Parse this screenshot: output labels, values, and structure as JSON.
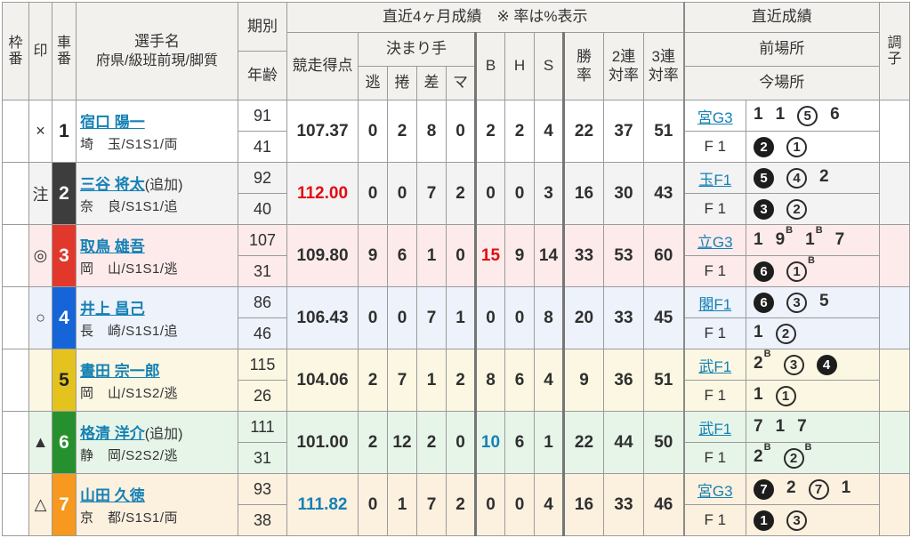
{
  "colors": {
    "link": "#1581b5",
    "red": "#e30b13",
    "blue": "#1581b5",
    "header_bg": "#f3f1ee",
    "border": "#9b9b9b"
  },
  "header": {
    "waku_l1": "枠",
    "waku_l2": "番",
    "mark": "印",
    "car_l1": "車",
    "car_l2": "番",
    "name_line1": "選手名",
    "name_line2": "府県/級班前現/脚質",
    "period": "期別",
    "age": "年齢",
    "recent4": "直近4ヶ月成績　※ 率は%表示",
    "score": "競走得点",
    "kimarite": "決まり手",
    "kimarite_cols": [
      "逃",
      "捲",
      "差",
      "マ"
    ],
    "bhs": [
      "B",
      "H",
      "S"
    ],
    "rates": [
      {
        "l1": "勝",
        "l2": "率"
      },
      {
        "l1": "2連",
        "l2": "対率"
      },
      {
        "l1": "3連",
        "l2": "対率"
      }
    ],
    "recent": "直近成績",
    "prev_place": "前場所",
    "cur_place": "今場所",
    "cond_l1": "調",
    "cond_l2": "子"
  },
  "riders": [
    {
      "mark": "×",
      "car": "1",
      "car_bg": "#ffffff",
      "car_fg": "#222222",
      "bg": "#ffffff",
      "name": "宿口 陽一",
      "name_suffix": "",
      "info": "埼　玉/S1S1/両",
      "period": "91",
      "age": "41",
      "score": "107.37",
      "score_color": "",
      "kimarite": [
        "0",
        "2",
        "8",
        "0"
      ],
      "b": "2",
      "b_color": "",
      "h": "2",
      "s": "4",
      "win": "22",
      "two": "37",
      "three": "51",
      "prev_place": "宮G3",
      "prev_place_link": true,
      "prev_results": [
        {
          "t": "1",
          "c": "p"
        },
        {
          "t": "1",
          "c": "p"
        },
        {
          "t": "5",
          "c": "w"
        },
        {
          "t": "6",
          "c": "p"
        }
      ],
      "cur_place": "F 1",
      "cur_results": [
        {
          "t": "2",
          "c": "b"
        },
        {
          "t": "1",
          "c": "w"
        }
      ]
    },
    {
      "mark": "注",
      "car": "2",
      "car_bg": "#3d3d3d",
      "car_fg": "#ffffff",
      "bg": "#f3f3f3",
      "name": "三谷 将太",
      "name_suffix": "(追加)",
      "info": "奈　良/S1S1/追",
      "period": "92",
      "age": "40",
      "score": "112.00",
      "score_color": "red",
      "kimarite": [
        "0",
        "0",
        "7",
        "2"
      ],
      "b": "0",
      "b_color": "",
      "h": "0",
      "s": "3",
      "win": "16",
      "two": "30",
      "three": "43",
      "prev_place": "玉F1",
      "prev_place_link": true,
      "prev_results": [
        {
          "t": "5",
          "c": "b"
        },
        {
          "t": "4",
          "c": "w"
        },
        {
          "t": "2",
          "c": "p"
        }
      ],
      "cur_place": "F 1",
      "cur_results": [
        {
          "t": "3",
          "c": "b"
        },
        {
          "t": "2",
          "c": "w"
        }
      ]
    },
    {
      "mark": "◎",
      "car": "3",
      "car_bg": "#e2382c",
      "car_fg": "#ffffff",
      "bg": "#fcebea",
      "name": "取鳥 雄吾",
      "name_suffix": "",
      "info": "岡　山/S1S1/逃",
      "period": "107",
      "age": "31",
      "score": "109.80",
      "score_color": "",
      "kimarite": [
        "9",
        "6",
        "1",
        "0"
      ],
      "b": "15",
      "b_color": "red",
      "h": "9",
      "s": "14",
      "win": "33",
      "two": "53",
      "three": "60",
      "prev_place": "立G3",
      "prev_place_link": true,
      "prev_results": [
        {
          "t": "1",
          "c": "p"
        },
        {
          "t": "9",
          "c": "p",
          "sup": "B"
        },
        {
          "t": "1",
          "c": "p",
          "sup": "B"
        },
        {
          "t": "7",
          "c": "p"
        }
      ],
      "cur_place": "F 1",
      "cur_results": [
        {
          "t": "6",
          "c": "b"
        },
        {
          "t": "1",
          "c": "w",
          "sup": "B"
        }
      ]
    },
    {
      "mark": "○",
      "car": "4",
      "car_bg": "#1565d8",
      "car_fg": "#ffffff",
      "bg": "#edf2fb",
      "name": "井上 昌己",
      "name_suffix": "",
      "info": "長　崎/S1S1/追",
      "period": "86",
      "age": "46",
      "score": "106.43",
      "score_color": "",
      "kimarite": [
        "0",
        "0",
        "7",
        "1"
      ],
      "b": "0",
      "b_color": "",
      "h": "0",
      "s": "8",
      "win": "20",
      "two": "33",
      "three": "45",
      "prev_place": "閣F1",
      "prev_place_link": true,
      "prev_results": [
        {
          "t": "6",
          "c": "b"
        },
        {
          "t": "3",
          "c": "w"
        },
        {
          "t": "5",
          "c": "p"
        }
      ],
      "cur_place": "F 1",
      "cur_results": [
        {
          "t": "1",
          "c": "p"
        },
        {
          "t": "2",
          "c": "w"
        }
      ]
    },
    {
      "mark": "",
      "car": "5",
      "car_bg": "#e5c31f",
      "car_fg": "#222222",
      "bg": "#fbf7e2",
      "name": "晝田 宗一郎",
      "name_suffix": "",
      "info": "岡　山/S1S2/逃",
      "period": "115",
      "age": "26",
      "score": "104.06",
      "score_color": "",
      "kimarite": [
        "2",
        "7",
        "1",
        "2"
      ],
      "b": "8",
      "b_color": "",
      "h": "6",
      "s": "4",
      "win": "9",
      "two": "36",
      "three": "51",
      "prev_place": "武F1",
      "prev_place_link": true,
      "prev_results": [
        {
          "t": "2",
          "c": "p",
          "sup": "B"
        },
        {
          "t": "3",
          "c": "w"
        },
        {
          "t": "4",
          "c": "b"
        }
      ],
      "cur_place": "F 1",
      "cur_results": [
        {
          "t": "1",
          "c": "p"
        },
        {
          "t": "1",
          "c": "w"
        }
      ]
    },
    {
      "mark": "▲",
      "car": "6",
      "car_bg": "#27902e",
      "car_fg": "#ffffff",
      "bg": "#e7f5e8",
      "name": "格清 洋介",
      "name_suffix": "(追加)",
      "info": "静　岡/S2S2/逃",
      "period": "111",
      "age": "31",
      "score": "101.00",
      "score_color": "",
      "kimarite": [
        "2",
        "12",
        "2",
        "0"
      ],
      "b": "10",
      "b_color": "blue",
      "h": "6",
      "s": "1",
      "win": "22",
      "two": "44",
      "three": "50",
      "prev_place": "武F1",
      "prev_place_link": true,
      "prev_results": [
        {
          "t": "7",
          "c": "p"
        },
        {
          "t": "1",
          "c": "p"
        },
        {
          "t": "7",
          "c": "p"
        }
      ],
      "cur_place": "F 1",
      "cur_results": [
        {
          "t": "2",
          "c": "p",
          "sup": "B"
        },
        {
          "t": "2",
          "c": "w",
          "sup": "B"
        }
      ]
    },
    {
      "mark": "△",
      "car": "7",
      "car_bg": "#f6991e",
      "car_fg": "#ffffff",
      "bg": "#fcf0df",
      "name": "山田 久徳",
      "name_suffix": "",
      "info": "京　都/S1S1/両",
      "period": "93",
      "age": "38",
      "score": "111.82",
      "score_color": "blue",
      "kimarite": [
        "0",
        "1",
        "7",
        "2"
      ],
      "b": "0",
      "b_color": "",
      "h": "0",
      "s": "4",
      "win": "16",
      "two": "33",
      "three": "46",
      "prev_place": "宮G3",
      "prev_place_link": true,
      "prev_results": [
        {
          "t": "7",
          "c": "b"
        },
        {
          "t": "2",
          "c": "p"
        },
        {
          "t": "7",
          "c": "w"
        },
        {
          "t": "1",
          "c": "p"
        }
      ],
      "cur_place": "F 1",
      "cur_results": [
        {
          "t": "1",
          "c": "b"
        },
        {
          "t": "3",
          "c": "w"
        }
      ]
    }
  ]
}
